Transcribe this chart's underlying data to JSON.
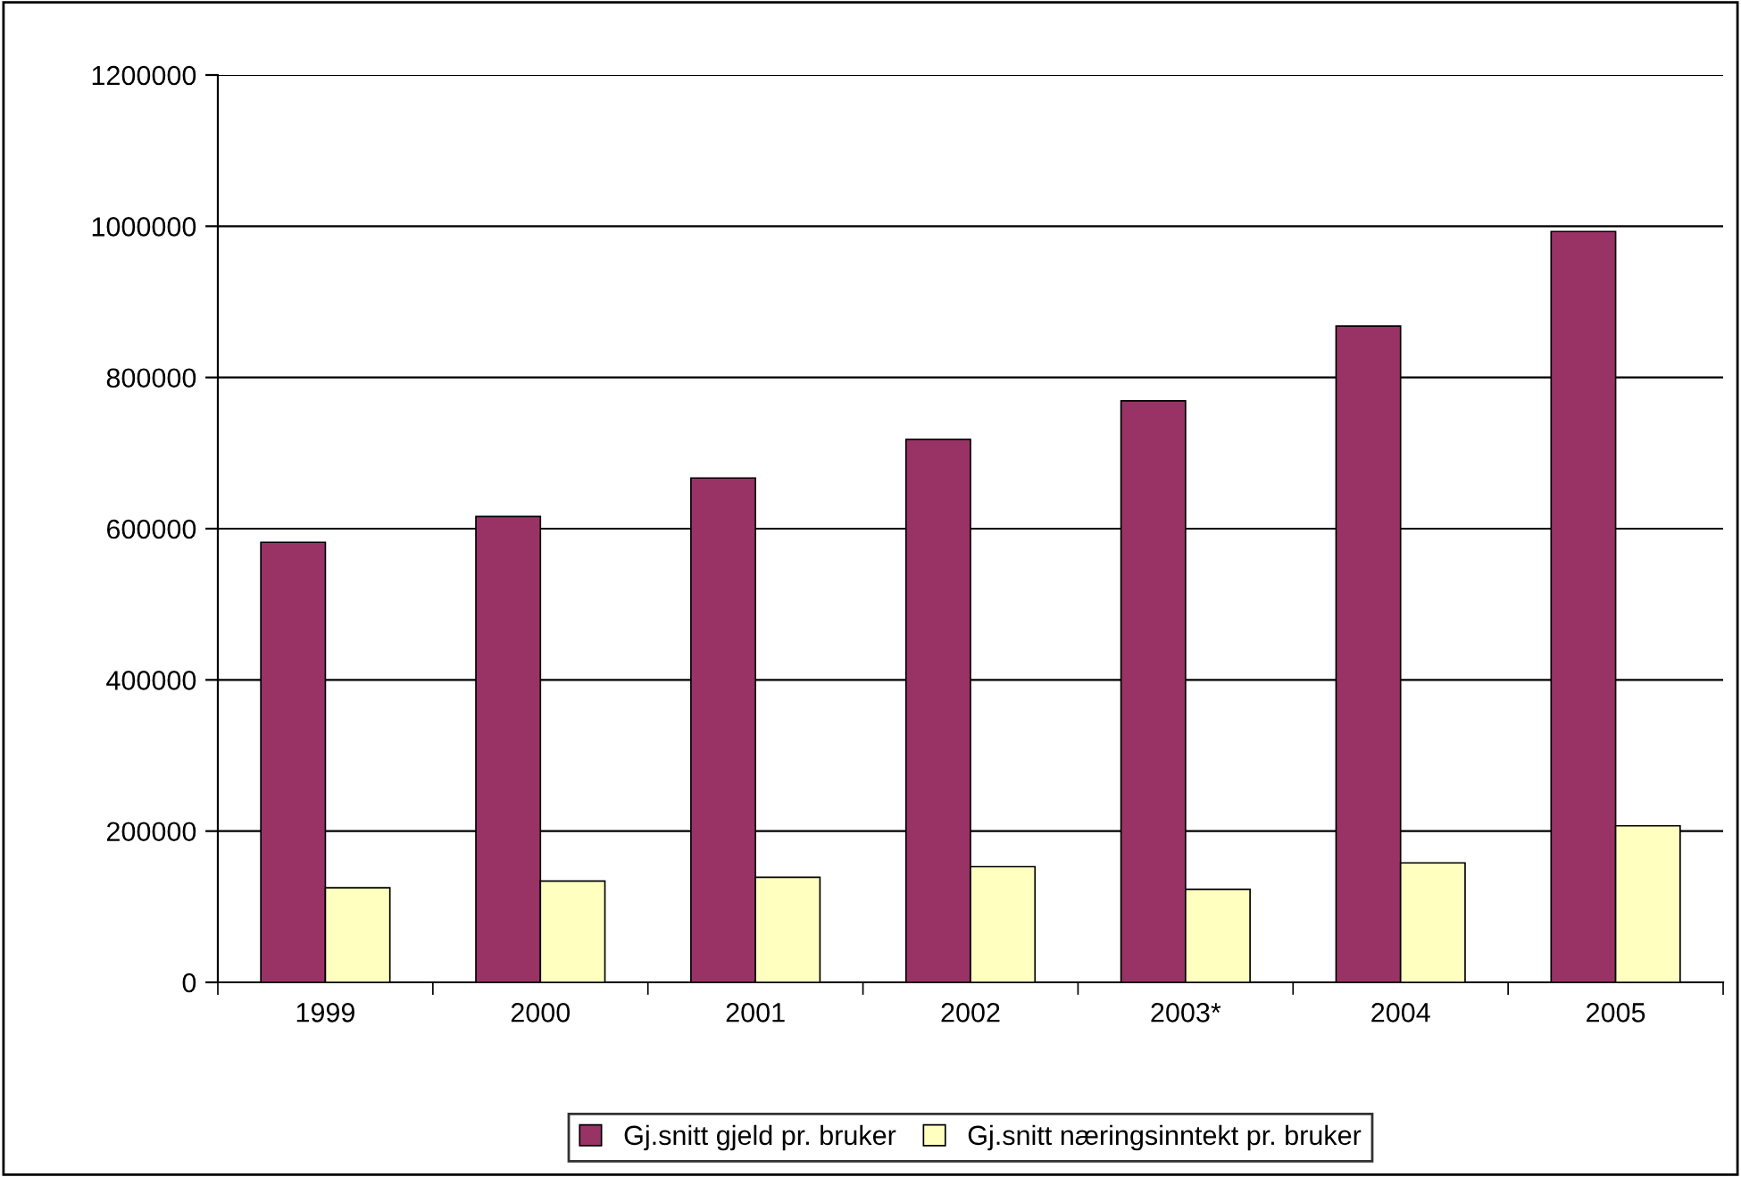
{
  "chart_data": {
    "type": "bar",
    "categories": [
      "1999",
      "2000",
      "2001",
      "2002",
      "2003*",
      "2004",
      "2005"
    ],
    "series": [
      {
        "name": "Gj.snitt gjeld pr. bruker",
        "color": "#993366",
        "values": [
          582000,
          616000,
          667000,
          718000,
          769000,
          868000,
          993000
        ]
      },
      {
        "name": "Gj.snitt næringsinntekt pr. bruker",
        "color": "#ffffc0",
        "values": [
          125000,
          134000,
          139000,
          153000,
          123000,
          158000,
          207000
        ]
      }
    ],
    "ylim": [
      0,
      1200000
    ],
    "yticks": [
      0,
      200000,
      400000,
      600000,
      800000,
      1000000,
      1200000
    ],
    "grid": "y",
    "legend": "bottom"
  }
}
